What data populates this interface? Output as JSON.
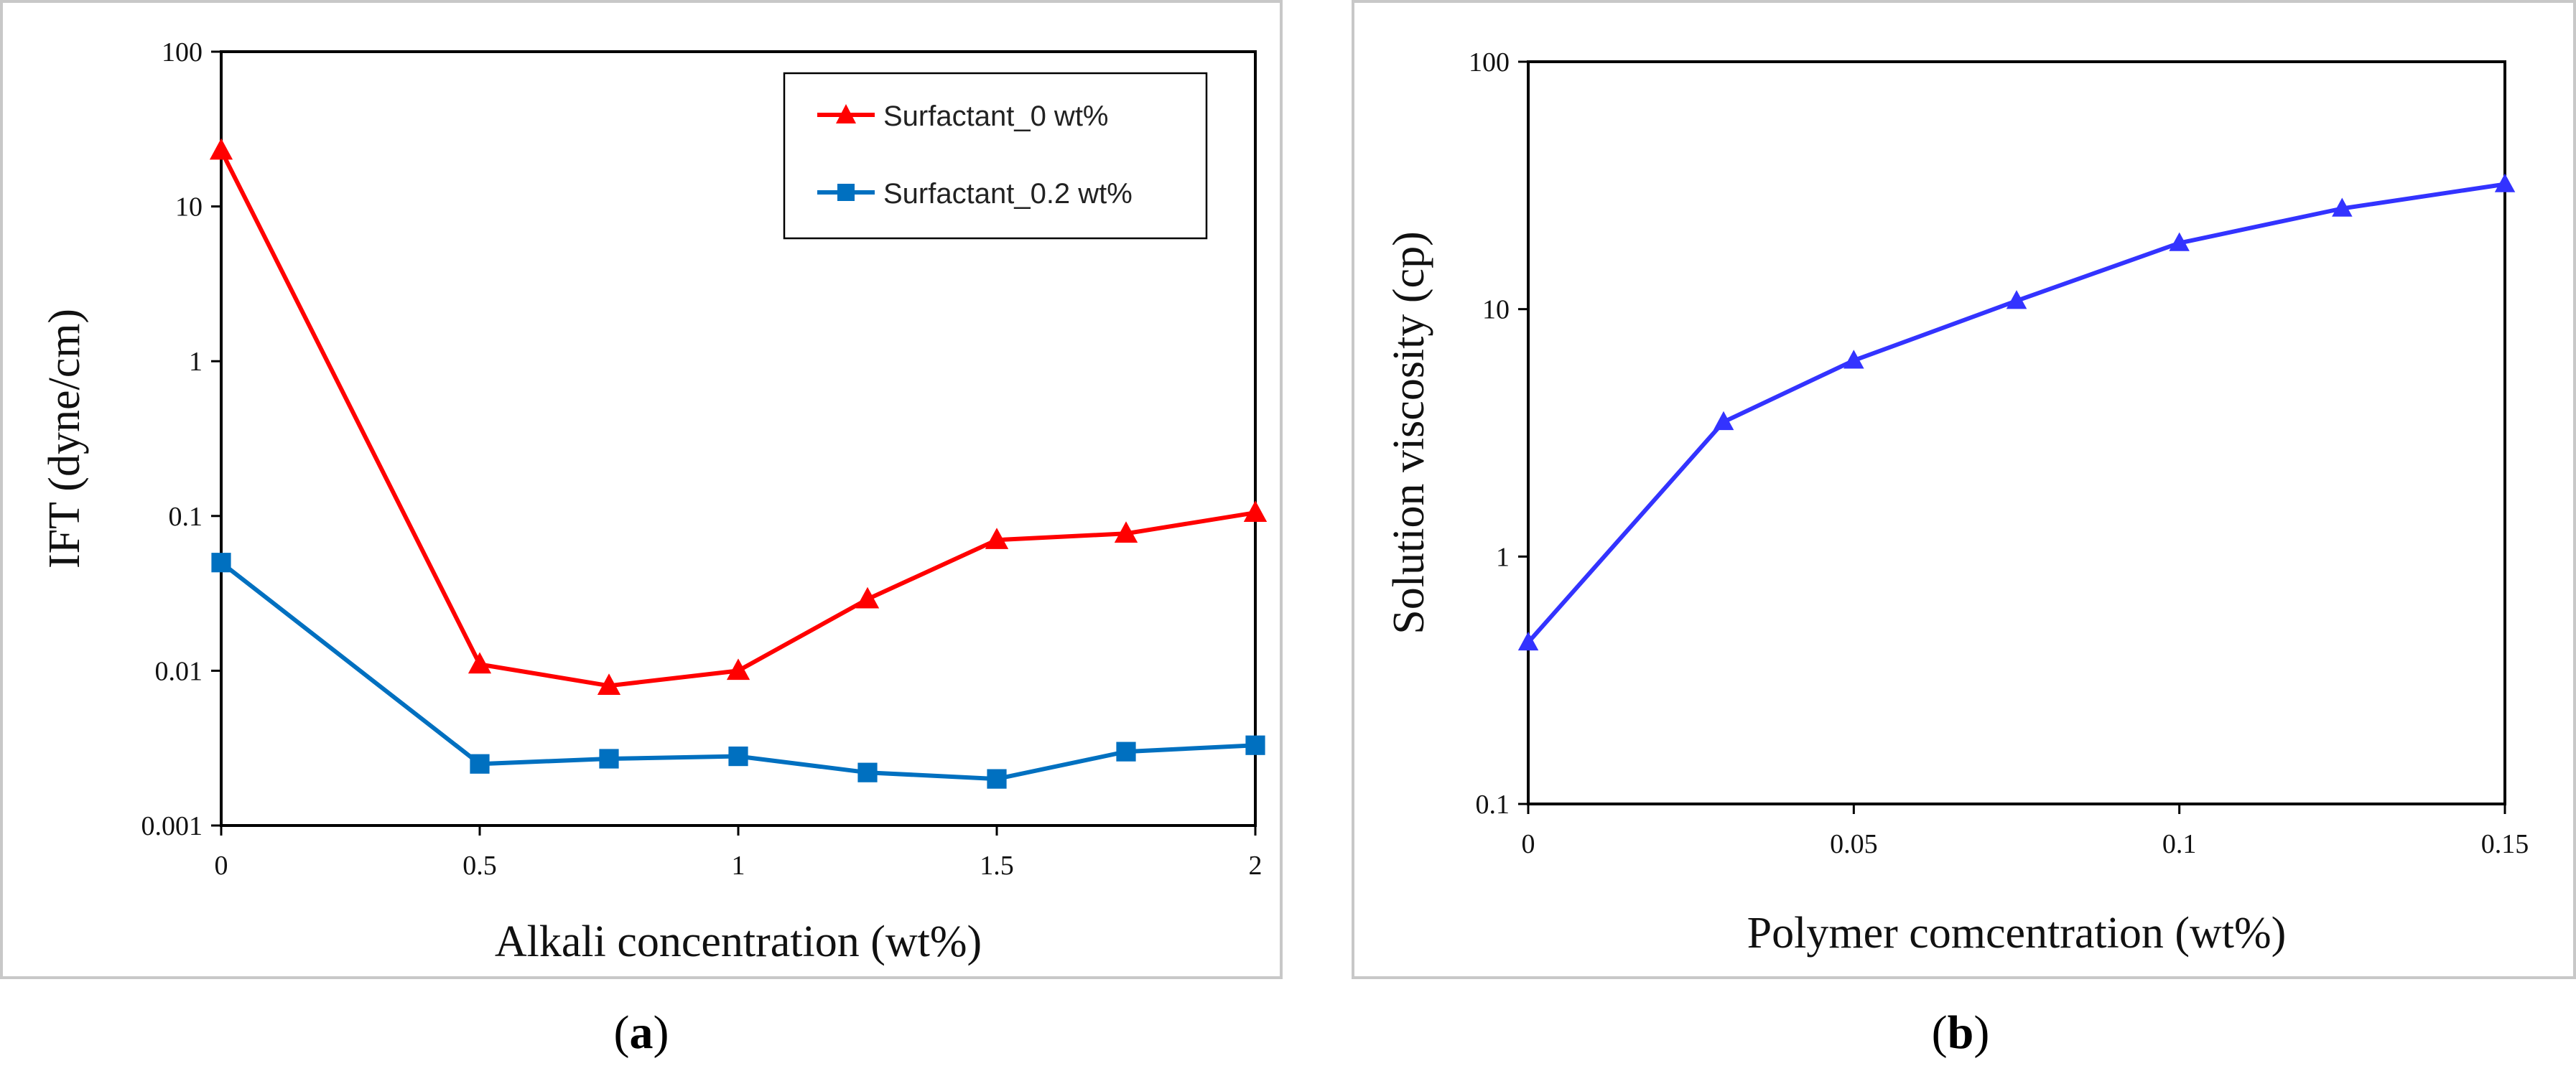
{
  "chart_data": [
    {
      "type": "line",
      "panel": "a",
      "caption_open": "(",
      "caption_letter": "a",
      "caption_close": ")",
      "xlabel": "Alkali concentration (wt%)",
      "ylabel": "IFT (dyne/cm)",
      "xscale": "linear",
      "yscale": "log",
      "xlim": [
        0,
        2
      ],
      "ylim": [
        0.001,
        100
      ],
      "xticks": [
        0,
        0.5,
        1,
        1.5,
        2
      ],
      "xtick_labels": [
        "0",
        "0.5",
        "1",
        "1.5",
        "2"
      ],
      "yticks": [
        0.001,
        0.01,
        0.1,
        1,
        10,
        100
      ],
      "ytick_labels": [
        "0.001",
        "0.01",
        "0.1",
        "1",
        "10",
        "100"
      ],
      "grid": false,
      "legend_position": "top-right",
      "series": [
        {
          "name": "Surfactant_0 wt%",
          "color": "#ff0000",
          "marker": "triangle",
          "x": [
            0,
            0.5,
            0.75,
            1,
            1.25,
            1.5,
            1.75,
            2
          ],
          "values": [
            23,
            0.011,
            0.008,
            0.01,
            0.029,
            0.07,
            0.077,
            0.105
          ]
        },
        {
          "name": "Surfactant_0.2 wt%",
          "color": "#0070c0",
          "marker": "square",
          "x": [
            0,
            0.5,
            0.75,
            1,
            1.25,
            1.5,
            1.75,
            2
          ],
          "values": [
            0.05,
            0.0025,
            0.0027,
            0.0028,
            0.0022,
            0.002,
            0.003,
            0.0033
          ]
        }
      ]
    },
    {
      "type": "line",
      "panel": "b",
      "caption_open": "(",
      "caption_letter": "b",
      "caption_close": ")",
      "xlabel": "Polymer comcentration (wt%)",
      "ylabel": "Solution viscosity (cp)",
      "xscale": "linear",
      "yscale": "log",
      "xlim": [
        0,
        0.15
      ],
      "ylim": [
        0.1,
        100
      ],
      "xticks": [
        0,
        0.05,
        0.1,
        0.15
      ],
      "xtick_labels": [
        "0",
        "0.05",
        "0.1",
        "0.15"
      ],
      "yticks": [
        0.1,
        1,
        10,
        100
      ],
      "ytick_labels": [
        "0.1",
        "1",
        "10",
        "100"
      ],
      "grid": false,
      "series": [
        {
          "name": "Solution viscosity",
          "color": "#3333ff",
          "marker": "triangle",
          "x": [
            0,
            0.03,
            0.05,
            0.075,
            0.1,
            0.125,
            0.15
          ],
          "values": [
            0.45,
            3.5,
            6.2,
            10.8,
            18.5,
            25.5,
            32
          ]
        }
      ]
    }
  ]
}
